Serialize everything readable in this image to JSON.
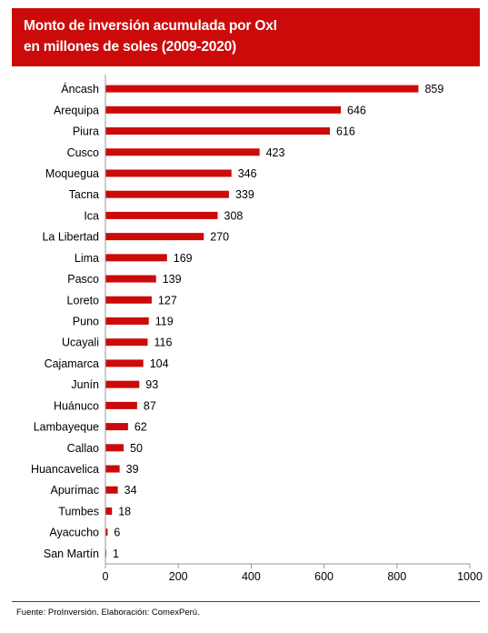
{
  "header": {
    "title_line1": "Monto de inversión acumulada por OxI",
    "title_line2": "en millones de soles (2009-2020)"
  },
  "source": "Fuente: ProInversión. Elaboración: ComexPerú.",
  "colors": {
    "header_bg": "#cc0a0a",
    "bar": "#cc0a0a",
    "axis": "#999999",
    "text": "#000000"
  },
  "chart_data": {
    "type": "bar",
    "orientation": "horizontal",
    "title": "Monto de inversión acumulada por OxI en millones de soles (2009-2020)",
    "categories": [
      "Áncash",
      "Arequipa",
      "Piura",
      "Cusco",
      "Moquegua",
      "Tacna",
      "Ica",
      "La Libertad",
      "Lima",
      "Pasco",
      "Loreto",
      "Puno",
      "Ucayali",
      "Cajamarca",
      "Junín",
      "Huánuco",
      "Lambayeque",
      "Callao",
      "Huancavelica",
      "Apurímac",
      "Tumbes",
      "Ayacucho",
      "San Martín"
    ],
    "values": [
      859,
      646,
      616,
      423,
      346,
      339,
      308,
      270,
      169,
      139,
      127,
      119,
      116,
      104,
      93,
      87,
      62,
      50,
      39,
      34,
      18,
      6,
      1
    ],
    "value_labels": [
      "859",
      "646",
      "616",
      "423",
      "346",
      "339",
      "308",
      "270",
      "169",
      "139",
      "127",
      "119",
      "116",
      "104",
      "93",
      "87",
      "62",
      "50",
      "39",
      "34",
      "18",
      "6",
      "1"
    ],
    "xlim": [
      0,
      1000
    ],
    "xticks": [
      0,
      200,
      400,
      600,
      800,
      1000
    ],
    "xtick_labels": [
      "0",
      "200",
      "400",
      "600",
      "800",
      "1000"
    ],
    "xlabel": "",
    "ylabel": "",
    "grid": false,
    "data_labels": true,
    "legend": "none"
  }
}
